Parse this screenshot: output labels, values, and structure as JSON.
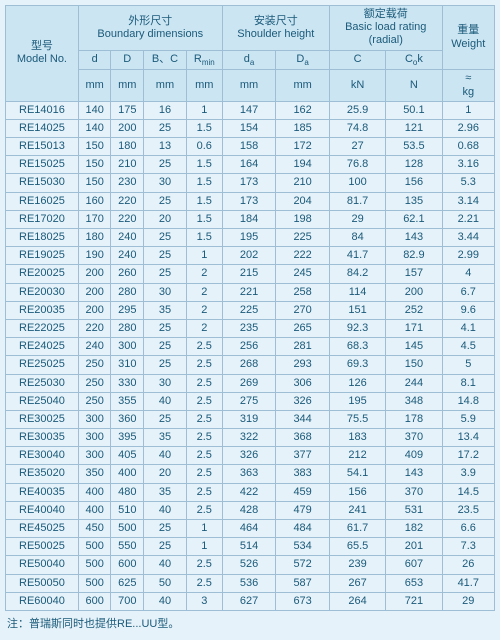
{
  "headers": {
    "model": {
      "cn": "型号",
      "en": "Model No."
    },
    "boundary": {
      "cn": "外形尺寸",
      "en": "Boundary dimensions"
    },
    "shoulder": {
      "cn": "安装尺寸",
      "en": "Shoulder height"
    },
    "basic": {
      "cn": "额定载荷",
      "en": "Basic load rating",
      "sub": "(radial)"
    },
    "weight": {
      "cn": "重量",
      "en": "Weight"
    },
    "d": "d",
    "D": "D",
    "BC": "B、C",
    "Rmin": "R",
    "da": "d",
    "Da": "D",
    "C": "C",
    "Cok": "C",
    "mm": "mm",
    "kN": "kN",
    "N": "N",
    "kg": "kg",
    "approx": "≈"
  },
  "rows": [
    [
      "RE14016",
      "140",
      "175",
      "16",
      "1",
      "147",
      "162",
      "25.9",
      "50.1",
      "1"
    ],
    [
      "RE14025",
      "140",
      "200",
      "25",
      "1.5",
      "154",
      "185",
      "74.8",
      "121",
      "2.96"
    ],
    [
      "RE15013",
      "150",
      "180",
      "13",
      "0.6",
      "158",
      "172",
      "27",
      "53.5",
      "0.68"
    ],
    [
      "RE15025",
      "150",
      "210",
      "25",
      "1.5",
      "164",
      "194",
      "76.8",
      "128",
      "3.16"
    ],
    [
      "RE15030",
      "150",
      "230",
      "30",
      "1.5",
      "173",
      "210",
      "100",
      "156",
      "5.3"
    ],
    [
      "RE16025",
      "160",
      "220",
      "25",
      "1.5",
      "173",
      "204",
      "81.7",
      "135",
      "3.14"
    ],
    [
      "RE17020",
      "170",
      "220",
      "20",
      "1.5",
      "184",
      "198",
      "29",
      "62.1",
      "2.21"
    ],
    [
      "RE18025",
      "180",
      "240",
      "25",
      "1.5",
      "195",
      "225",
      "84",
      "143",
      "3.44"
    ],
    [
      "RE19025",
      "190",
      "240",
      "25",
      "1",
      "202",
      "222",
      "41.7",
      "82.9",
      "2.99"
    ],
    [
      "RE20025",
      "200",
      "260",
      "25",
      "2",
      "215",
      "245",
      "84.2",
      "157",
      "4"
    ],
    [
      "RE20030",
      "200",
      "280",
      "30",
      "2",
      "221",
      "258",
      "114",
      "200",
      "6.7"
    ],
    [
      "RE20035",
      "200",
      "295",
      "35",
      "2",
      "225",
      "270",
      "151",
      "252",
      "9.6"
    ],
    [
      "RE22025",
      "220",
      "280",
      "25",
      "2",
      "235",
      "265",
      "92.3",
      "171",
      "4.1"
    ],
    [
      "RE24025",
      "240",
      "300",
      "25",
      "2.5",
      "256",
      "281",
      "68.3",
      "145",
      "4.5"
    ],
    [
      "RE25025",
      "250",
      "310",
      "25",
      "2.5",
      "268",
      "293",
      "69.3",
      "150",
      "5"
    ],
    [
      "RE25030",
      "250",
      "330",
      "30",
      "2.5",
      "269",
      "306",
      "126",
      "244",
      "8.1"
    ],
    [
      "RE25040",
      "250",
      "355",
      "40",
      "2.5",
      "275",
      "326",
      "195",
      "348",
      "14.8"
    ],
    [
      "RE30025",
      "300",
      "360",
      "25",
      "2.5",
      "319",
      "344",
      "75.5",
      "178",
      "5.9"
    ],
    [
      "RE30035",
      "300",
      "395",
      "35",
      "2.5",
      "322",
      "368",
      "183",
      "370",
      "13.4"
    ],
    [
      "RE30040",
      "300",
      "405",
      "40",
      "2.5",
      "326",
      "377",
      "212",
      "409",
      "17.2"
    ],
    [
      "RE35020",
      "350",
      "400",
      "20",
      "2.5",
      "363",
      "383",
      "54.1",
      "143",
      "3.9"
    ],
    [
      "RE40035",
      "400",
      "480",
      "35",
      "2.5",
      "422",
      "459",
      "156",
      "370",
      "14.5"
    ],
    [
      "RE40040",
      "400",
      "510",
      "40",
      "2.5",
      "428",
      "479",
      "241",
      "531",
      "23.5"
    ],
    [
      "RE45025",
      "450",
      "500",
      "25",
      "1",
      "464",
      "484",
      "61.7",
      "182",
      "6.6"
    ],
    [
      "RE50025",
      "500",
      "550",
      "25",
      "1",
      "514",
      "534",
      "65.5",
      "201",
      "7.3"
    ],
    [
      "RE50040",
      "500",
      "600",
      "40",
      "2.5",
      "526",
      "572",
      "239",
      "607",
      "26"
    ],
    [
      "RE50050",
      "500",
      "625",
      "50",
      "2.5",
      "536",
      "587",
      "267",
      "653",
      "41.7"
    ],
    [
      "RE60040",
      "600",
      "700",
      "40",
      "3",
      "627",
      "673",
      "264",
      "721",
      "29"
    ]
  ],
  "note": "注：普瑞斯同时也提供RE...UU型。"
}
